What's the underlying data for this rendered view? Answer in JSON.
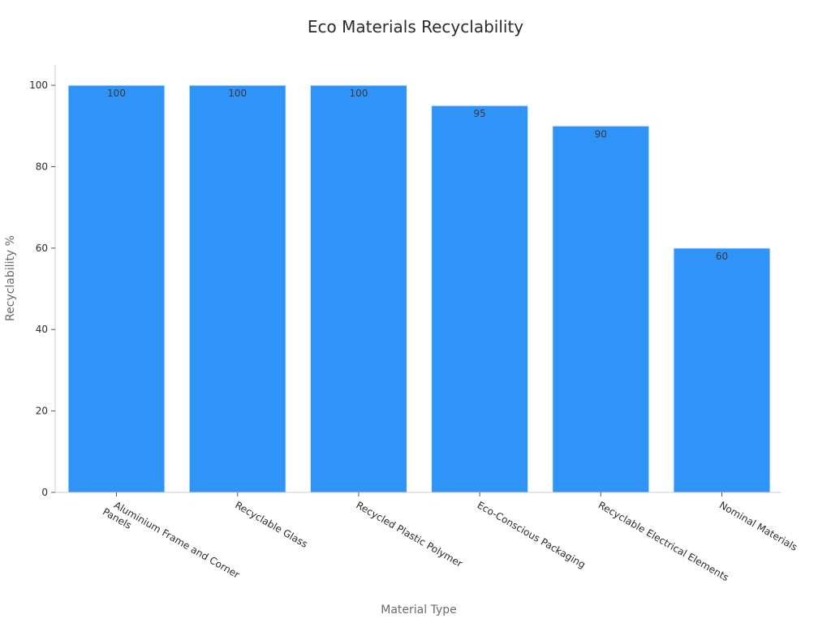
{
  "chart_data": {
    "type": "bar",
    "title": "Eco Materials Recyclability",
    "xlabel": "Material Type",
    "ylabel": "Recyclability %",
    "categories": [
      [
        "Aluminium Frame and Corner",
        "Panels"
      ],
      [
        "Recyclable Glass"
      ],
      [
        "Recycled Plastic Polymer"
      ],
      [
        "Eco-Conscious Packaging"
      ],
      [
        "Recyclable Electrical Elements"
      ],
      [
        "Nominal Materials"
      ]
    ],
    "values": [
      100,
      100,
      100,
      95,
      90,
      60
    ],
    "ylim": [
      0,
      105
    ],
    "yticks": [
      0,
      20,
      40,
      60,
      80,
      100
    ],
    "bar_color": "#2f93f7",
    "grid": false,
    "legend": "none"
  }
}
